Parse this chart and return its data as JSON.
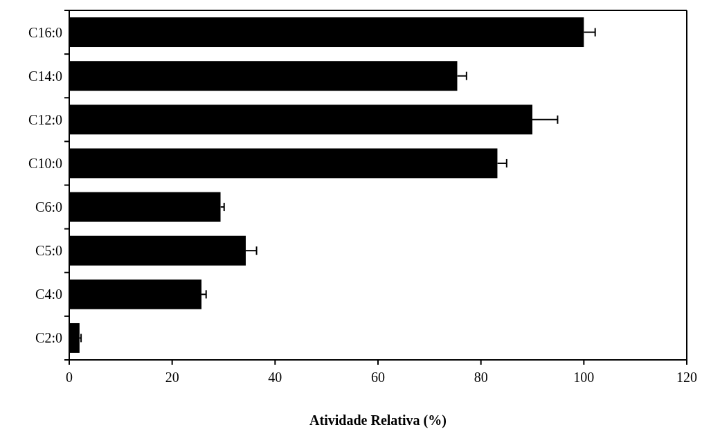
{
  "chart_data": {
    "type": "bar",
    "orientation": "horizontal",
    "xlabel": "Atividade Relativa (%)",
    "categories": [
      "C16:0",
      "C14:0",
      "C12:0",
      "C10:0",
      "C6:0",
      "C5:0",
      "C4:0",
      "C2:0"
    ],
    "values": [
      100,
      75.4,
      90.0,
      83.2,
      29.4,
      34.3,
      25.7,
      2.0
    ],
    "errors": [
      2.2,
      1.8,
      4.9,
      1.8,
      0.7,
      2.1,
      0.9,
      0.3
    ],
    "color": "#000000",
    "xlim": [
      0,
      120
    ],
    "xticks": [
      0,
      20,
      40,
      60,
      80,
      100,
      120
    ],
    "grid": false
  }
}
